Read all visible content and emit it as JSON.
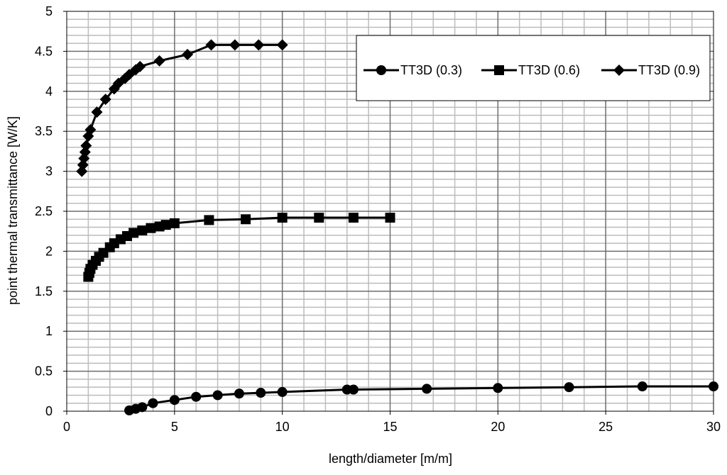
{
  "chart_data": {
    "type": "line",
    "title": "",
    "xlabel": "length/diameter [m/m]",
    "ylabel": "point thermal transmittance   [W/K]",
    "xlim": [
      0,
      30
    ],
    "ylim": [
      0,
      5
    ],
    "x_ticks": [
      0,
      5,
      10,
      15,
      20,
      25,
      30
    ],
    "y_ticks": [
      0,
      0.5,
      1,
      1.5,
      2,
      2.5,
      3,
      3.5,
      4,
      4.5,
      5
    ],
    "x_tick_labels": [
      "0",
      "5",
      "10",
      "15",
      "20",
      "25",
      "30"
    ],
    "y_tick_labels": [
      "0",
      "0.5",
      "1",
      "1.5",
      "2",
      "2.5",
      "3",
      "3.5",
      "4",
      "4.5",
      "5"
    ],
    "grid": true,
    "legend_position": "top-right",
    "series": [
      {
        "name": "TT3D (0.3)",
        "marker": "circle",
        "color": "#000000",
        "points": [
          [
            2.9,
            0.01
          ],
          [
            3.2,
            0.03
          ],
          [
            3.5,
            0.05
          ],
          [
            4.0,
            0.1
          ],
          [
            5.0,
            0.14
          ],
          [
            6.0,
            0.18
          ],
          [
            7.0,
            0.2
          ],
          [
            8.0,
            0.22
          ],
          [
            9.0,
            0.23
          ],
          [
            10.0,
            0.24
          ],
          [
            13.0,
            0.27
          ],
          [
            13.3,
            0.27
          ],
          [
            16.7,
            0.28
          ],
          [
            20.0,
            0.29
          ],
          [
            23.3,
            0.3
          ],
          [
            26.7,
            0.31
          ],
          [
            30.0,
            0.31
          ]
        ]
      },
      {
        "name": "TT3D (0.6)",
        "marker": "square",
        "color": "#000000",
        "points": [
          [
            1.0,
            1.68
          ],
          [
            1.05,
            1.73
          ],
          [
            1.1,
            1.78
          ],
          [
            1.2,
            1.83
          ],
          [
            1.35,
            1.88
          ],
          [
            1.5,
            1.93
          ],
          [
            1.7,
            1.98
          ],
          [
            2.0,
            2.05
          ],
          [
            2.2,
            2.1
          ],
          [
            2.5,
            2.15
          ],
          [
            2.8,
            2.19
          ],
          [
            3.1,
            2.23
          ],
          [
            3.5,
            2.26
          ],
          [
            3.9,
            2.29
          ],
          [
            4.3,
            2.31
          ],
          [
            4.6,
            2.33
          ],
          [
            5.0,
            2.35
          ],
          [
            6.6,
            2.39
          ],
          [
            8.3,
            2.4
          ],
          [
            10.0,
            2.42
          ],
          [
            11.7,
            2.42
          ],
          [
            13.3,
            2.42
          ],
          [
            15.0,
            2.42
          ]
        ]
      },
      {
        "name": "TT3D (0.9)",
        "marker": "diamond",
        "color": "#000000",
        "points": [
          [
            0.7,
            3.0
          ],
          [
            0.75,
            3.08
          ],
          [
            0.8,
            3.16
          ],
          [
            0.85,
            3.24
          ],
          [
            0.9,
            3.32
          ],
          [
            1.0,
            3.44
          ],
          [
            1.1,
            3.52
          ],
          [
            1.4,
            3.74
          ],
          [
            1.8,
            3.9
          ],
          [
            2.2,
            4.03
          ],
          [
            2.4,
            4.1
          ],
          [
            2.7,
            4.16
          ],
          [
            2.9,
            4.21
          ],
          [
            3.2,
            4.27
          ],
          [
            3.4,
            4.31
          ],
          [
            4.3,
            4.38
          ],
          [
            5.6,
            4.46
          ],
          [
            6.7,
            4.58
          ],
          [
            7.8,
            4.58
          ],
          [
            8.9,
            4.58
          ],
          [
            10.0,
            4.58
          ]
        ]
      }
    ]
  }
}
